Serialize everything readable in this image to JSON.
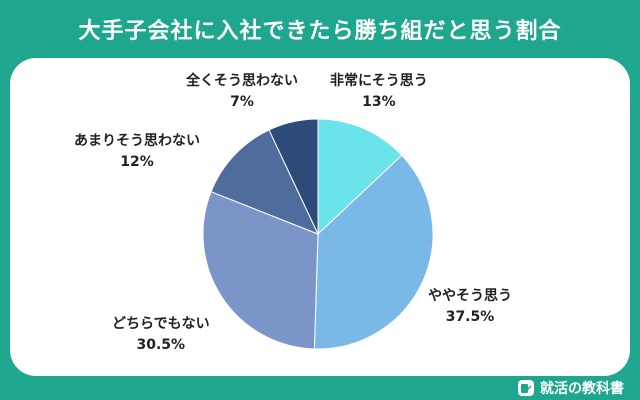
{
  "chart_data": {
    "type": "pie",
    "title": "大手子会社に入社できたら勝ち組だと思う割合",
    "slices": [
      {
        "label": "非常にそう思う",
        "value": 13,
        "display": "13%",
        "color": "#6be3ea"
      },
      {
        "label": "ややそう思う",
        "value": 37.5,
        "display": "37.5%",
        "color": "#7ab8e8"
      },
      {
        "label": "どちらでもない",
        "value": 30.5,
        "display": "30.5%",
        "color": "#7b95c8"
      },
      {
        "label": "あまりそう思わない",
        "value": 12,
        "display": "12%",
        "color": "#4e6d9c"
      },
      {
        "label": "全くそう思わない",
        "value": 7,
        "display": "7%",
        "color": "#2d4a78"
      }
    ],
    "start": "12 o'clock, clockwise",
    "legend": "none (labels beside slices)"
  },
  "brand": {
    "name": "就活の教科書",
    "icon": "book-pen-icon"
  },
  "colors": {
    "background": "#1fa68f",
    "card": "#ffffff",
    "title_text": "#ffffff"
  }
}
